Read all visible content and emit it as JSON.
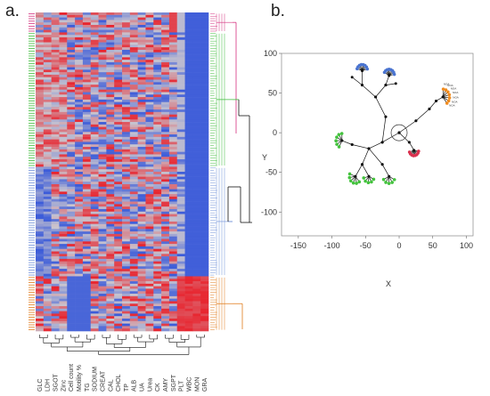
{
  "panels": {
    "a_label": "a.",
    "b_label": "b."
  },
  "colors": {
    "heat_low": "#3b5bd9",
    "heat_mid": "#c9c5cf",
    "heat_high": "#e8232d",
    "cluster_magenta": "#d4307e",
    "cluster_green": "#3dbb3a",
    "cluster_blue": "#6f90d8",
    "cluster_orange": "#e07b1a",
    "tree_black": "#111111",
    "node_blue": "#4a74d0",
    "node_green": "#43c23d",
    "node_red": "#d9304e",
    "node_orange": "#f08c20"
  },
  "chart_data": [
    {
      "type": "heatmap",
      "panel": "a.",
      "columns": [
        "GLC",
        "LDH",
        "SGOT",
        "Zinc",
        "Cell count",
        "Motility %",
        "TG",
        "SODIUM",
        "CREAT",
        "CAL",
        "CHOL",
        "TP",
        "ALB",
        "UA",
        "Urea",
        "CK",
        "AMY",
        "SGPT",
        "PLT",
        "WBC",
        "MON",
        "GRA"
      ],
      "row_clusters": [
        {
          "name": "magenta",
          "rows": 8
        },
        {
          "name": "green",
          "rows": 54
        },
        {
          "name": "blue",
          "rows": 44
        },
        {
          "name": "orange",
          "rows": 22
        }
      ],
      "grid": false
    },
    {
      "type": "scatter",
      "panel": "b.",
      "xlabel": "X",
      "ylabel": "Y",
      "xlim": [
        -175,
        110
      ],
      "ylim": [
        -130,
        100
      ],
      "xticks": [
        -150,
        -100,
        -50,
        0,
        50,
        100
      ],
      "yticks": [
        100,
        50,
        0,
        -50,
        -100
      ],
      "grid": false,
      "node_label": "NOA",
      "circle_center": [
        0,
        0
      ],
      "groups": [
        {
          "name": "blue",
          "count": 16
        },
        {
          "name": "green",
          "count": 22
        },
        {
          "name": "red",
          "count": 8
        },
        {
          "name": "orange",
          "count": 7
        }
      ]
    }
  ]
}
